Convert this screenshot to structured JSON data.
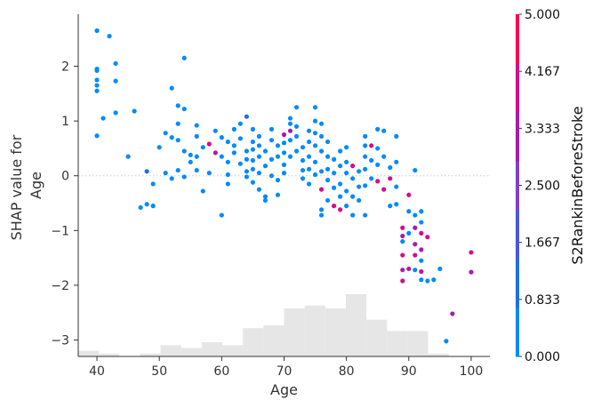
{
  "chart_data": {
    "type": "scatter",
    "title": "",
    "xlabel": "Age",
    "ylabel_lines": [
      "SHAP value for",
      "Age"
    ],
    "xlim": [
      37,
      103
    ],
    "ylim": [
      -3.3,
      2.95
    ],
    "x_ticks": [
      40,
      50,
      60,
      70,
      80,
      90,
      100
    ],
    "y_ticks": [
      2,
      1,
      0,
      -1,
      -2,
      -3
    ],
    "y_tick_labels": [
      "2",
      "1",
      "0",
      "−1",
      "−2",
      "−3"
    ],
    "zero_line": true,
    "grid": false,
    "colorbar": {
      "title": "S2RankinBeforeStroke",
      "range": [
        0,
        5
      ],
      "tick_labels": [
        "0.000",
        "0.833",
        "1.667",
        "2.500",
        "3.333",
        "4.167",
        "5.000"
      ],
      "colors": [
        "#008bfb",
        "#1e6fe0",
        "#4a58d8",
        "#7f3fd0",
        "#a81ab0",
        "#d40b8c",
        "#ff0052"
      ]
    },
    "histogram": {
      "bin_edges": [
        37,
        40.3,
        43.6,
        46.9,
        50.2,
        53.5,
        56.8,
        60.1,
        63.4,
        66.7,
        70,
        73.3,
        76.6,
        79.9,
        83.2,
        86.5,
        89.8,
        93.1,
        96.4,
        99.7,
        103
      ],
      "counts": [
        2,
        1,
        0,
        1,
        4,
        3,
        5,
        4,
        10,
        11,
        17,
        18,
        17,
        22,
        13,
        9,
        9,
        1,
        0,
        0
      ],
      "color": "#e6e6e6"
    },
    "points": [
      {
        "x": 40,
        "y": 2.65,
        "c": 0
      },
      {
        "x": 42,
        "y": 2.55,
        "c": 0
      },
      {
        "x": 40,
        "y": 1.95,
        "c": 0
      },
      {
        "x": 40,
        "y": 1.92,
        "c": 0
      },
      {
        "x": 43,
        "y": 2.05,
        "c": 0
      },
      {
        "x": 40,
        "y": 1.75,
        "c": 0
      },
      {
        "x": 43,
        "y": 1.73,
        "c": 0
      },
      {
        "x": 40,
        "y": 1.65,
        "c": 0
      },
      {
        "x": 40,
        "y": 1.55,
        "c": 0
      },
      {
        "x": 54,
        "y": 2.15,
        "c": 0
      },
      {
        "x": 41,
        "y": 1.05,
        "c": 0
      },
      {
        "x": 43,
        "y": 1.15,
        "c": 0
      },
      {
        "x": 40,
        "y": 0.73,
        "c": 0
      },
      {
        "x": 46,
        "y": 1.18,
        "c": 0
      },
      {
        "x": 45,
        "y": 0.35,
        "c": 0
      },
      {
        "x": 52,
        "y": 1.6,
        "c": 0
      },
      {
        "x": 53,
        "y": 1.28,
        "c": 0
      },
      {
        "x": 54,
        "y": 1.22,
        "c": 0
      },
      {
        "x": 51,
        "y": 0.78,
        "c": 0
      },
      {
        "x": 52,
        "y": 0.7,
        "c": 0
      },
      {
        "x": 50,
        "y": 0.52,
        "c": 0
      },
      {
        "x": 53,
        "y": 0.95,
        "c": 0
      },
      {
        "x": 53,
        "y": 0.65,
        "c": 0
      },
      {
        "x": 54,
        "y": 0.45,
        "c": 0
      },
      {
        "x": 53,
        "y": 0.1,
        "c": 0
      },
      {
        "x": 51,
        "y": 0.05,
        "c": 0
      },
      {
        "x": 48,
        "y": 0.08,
        "c": 1
      },
      {
        "x": 49,
        "y": -0.15,
        "c": 0
      },
      {
        "x": 47,
        "y": -0.58,
        "c": 0
      },
      {
        "x": 48,
        "y": -0.52,
        "c": 0
      },
      {
        "x": 49,
        "y": -0.55,
        "c": 0
      },
      {
        "x": 55,
        "y": 0.38,
        "c": 0
      },
      {
        "x": 55,
        "y": 0.25,
        "c": 0
      },
      {
        "x": 54,
        "y": -0.02,
        "c": 0
      },
      {
        "x": 52,
        "y": -0.05,
        "c": 0
      },
      {
        "x": 56,
        "y": 0.35,
        "c": 0
      },
      {
        "x": 56,
        "y": 0.1,
        "c": 0
      },
      {
        "x": 57,
        "y": -0.28,
        "c": 0
      },
      {
        "x": 56,
        "y": 0.92,
        "c": 0
      },
      {
        "x": 56,
        "y": 0.72,
        "c": 0
      },
      {
        "x": 57,
        "y": 0.52,
        "c": 0
      },
      {
        "x": 58,
        "y": 0.58,
        "c": 4
      },
      {
        "x": 59,
        "y": 0.42,
        "c": 3
      },
      {
        "x": 58,
        "y": 0.05,
        "c": 0
      },
      {
        "x": 60,
        "y": -0.72,
        "c": 0
      },
      {
        "x": 59,
        "y": 0.82,
        "c": 0
      },
      {
        "x": 60,
        "y": 0.7,
        "c": 0
      },
      {
        "x": 60,
        "y": 0.35,
        "c": 0
      },
      {
        "x": 61,
        "y": 0.25,
        "c": 0
      },
      {
        "x": 61,
        "y": 0.62,
        "c": 0
      },
      {
        "x": 61,
        "y": 0.02,
        "c": 0
      },
      {
        "x": 61,
        "y": -0.15,
        "c": 0
      },
      {
        "x": 62,
        "y": 0.55,
        "c": 0
      },
      {
        "x": 62,
        "y": 0.42,
        "c": 0
      },
      {
        "x": 62,
        "y": 0.85,
        "c": 0
      },
      {
        "x": 63,
        "y": 0.95,
        "c": 0
      },
      {
        "x": 63,
        "y": 0.68,
        "c": 0
      },
      {
        "x": 63,
        "y": 0.22,
        "c": 0
      },
      {
        "x": 64,
        "y": 1.08,
        "c": 1
      },
      {
        "x": 64,
        "y": 0.45,
        "c": 0
      },
      {
        "x": 64,
        "y": 0.3,
        "c": 0
      },
      {
        "x": 64,
        "y": 0.08,
        "c": 0
      },
      {
        "x": 64,
        "y": -0.02,
        "c": 0
      },
      {
        "x": 65,
        "y": 0.85,
        "c": 0
      },
      {
        "x": 65,
        "y": 0.62,
        "c": 0
      },
      {
        "x": 65,
        "y": 0.48,
        "c": 0
      },
      {
        "x": 65,
        "y": 0.28,
        "c": 0
      },
      {
        "x": 65,
        "y": 0.12,
        "c": 0
      },
      {
        "x": 65,
        "y": -0.12,
        "c": 0
      },
      {
        "x": 66,
        "y": 0.72,
        "c": 0
      },
      {
        "x": 66,
        "y": 0.55,
        "c": 0
      },
      {
        "x": 66,
        "y": 0.35,
        "c": 0
      },
      {
        "x": 66,
        "y": 0.05,
        "c": 0
      },
      {
        "x": 66,
        "y": -0.25,
        "c": 0
      },
      {
        "x": 67,
        "y": 0.45,
        "c": 0
      },
      {
        "x": 67,
        "y": 0.18,
        "c": 0
      },
      {
        "x": 67,
        "y": -0.38,
        "c": 0
      },
      {
        "x": 67,
        "y": -0.45,
        "c": 0
      },
      {
        "x": 68,
        "y": 0.85,
        "c": 0
      },
      {
        "x": 68,
        "y": 0.65,
        "c": 0
      },
      {
        "x": 68,
        "y": 0.3,
        "c": 0
      },
      {
        "x": 68,
        "y": 0.0,
        "c": 0
      },
      {
        "x": 69,
        "y": 0.55,
        "c": 0
      },
      {
        "x": 69,
        "y": 0.35,
        "c": 0
      },
      {
        "x": 69,
        "y": -0.08,
        "c": 0
      },
      {
        "x": 69,
        "y": -0.35,
        "c": 0
      },
      {
        "x": 70,
        "y": 0.75,
        "c": 3
      },
      {
        "x": 70,
        "y": 0.6,
        "c": 0
      },
      {
        "x": 70,
        "y": 0.42,
        "c": 0
      },
      {
        "x": 70,
        "y": 0.2,
        "c": 0
      },
      {
        "x": 70,
        "y": 0.05,
        "c": 0
      },
      {
        "x": 71,
        "y": 1.05,
        "c": 0
      },
      {
        "x": 71,
        "y": 0.95,
        "c": 0
      },
      {
        "x": 71,
        "y": 0.82,
        "c": 3
      },
      {
        "x": 71,
        "y": 0.65,
        "c": 0
      },
      {
        "x": 71,
        "y": 0.35,
        "c": 0
      },
      {
        "x": 72,
        "y": 1.25,
        "c": 0
      },
      {
        "x": 72,
        "y": 0.9,
        "c": 0
      },
      {
        "x": 72,
        "y": 0.72,
        "c": 0
      },
      {
        "x": 72,
        "y": 0.45,
        "c": 0
      },
      {
        "x": 73,
        "y": 0.52,
        "c": 0
      },
      {
        "x": 73,
        "y": 0.28,
        "c": 0
      },
      {
        "x": 73,
        "y": 0.1,
        "c": 0
      },
      {
        "x": 73,
        "y": -0.05,
        "c": 0
      },
      {
        "x": 74,
        "y": 0.82,
        "c": 0
      },
      {
        "x": 74,
        "y": 0.62,
        "c": 0
      },
      {
        "x": 74,
        "y": 0.35,
        "c": 0
      },
      {
        "x": 74,
        "y": 0.12,
        "c": 0
      },
      {
        "x": 74,
        "y": -0.15,
        "c": 0
      },
      {
        "x": 75,
        "y": 1.25,
        "c": 0
      },
      {
        "x": 75,
        "y": 1.0,
        "c": 0
      },
      {
        "x": 75,
        "y": 0.78,
        "c": 0
      },
      {
        "x": 75,
        "y": 0.55,
        "c": 0
      },
      {
        "x": 75,
        "y": 0.25,
        "c": 0
      },
      {
        "x": 75,
        "y": 0.02,
        "c": 0
      },
      {
        "x": 76,
        "y": 0.95,
        "c": 0
      },
      {
        "x": 76,
        "y": 0.72,
        "c": 0
      },
      {
        "x": 76,
        "y": 0.45,
        "c": 0
      },
      {
        "x": 76,
        "y": 0.08,
        "c": 0
      },
      {
        "x": 76,
        "y": -0.25,
        "c": 4
      },
      {
        "x": 76,
        "y": -0.62,
        "c": 0
      },
      {
        "x": 76,
        "y": -0.72,
        "c": 0
      },
      {
        "x": 77,
        "y": 0.62,
        "c": 0
      },
      {
        "x": 77,
        "y": 0.35,
        "c": 0
      },
      {
        "x": 77,
        "y": 0.12,
        "c": 0
      },
      {
        "x": 77,
        "y": -0.08,
        "c": 0
      },
      {
        "x": 77,
        "y": -0.45,
        "c": 0
      },
      {
        "x": 78,
        "y": 0.3,
        "c": 0
      },
      {
        "x": 78,
        "y": 0.05,
        "c": 0
      },
      {
        "x": 78,
        "y": -0.22,
        "c": 0
      },
      {
        "x": 78,
        "y": -0.55,
        "c": 4
      },
      {
        "x": 79,
        "y": 0.45,
        "c": 0
      },
      {
        "x": 79,
        "y": 0.18,
        "c": 0
      },
      {
        "x": 79,
        "y": -0.15,
        "c": 0
      },
      {
        "x": 79,
        "y": -0.38,
        "c": 0
      },
      {
        "x": 79,
        "y": -0.62,
        "c": 4
      },
      {
        "x": 80,
        "y": 0.52,
        "c": 0
      },
      {
        "x": 80,
        "y": 0.25,
        "c": 0
      },
      {
        "x": 80,
        "y": 0.05,
        "c": 0
      },
      {
        "x": 80,
        "y": -0.28,
        "c": 0
      },
      {
        "x": 80,
        "y": -0.55,
        "c": 0
      },
      {
        "x": 81,
        "y": 0.18,
        "c": 4
      },
      {
        "x": 81,
        "y": -0.05,
        "c": 0
      },
      {
        "x": 81,
        "y": -0.38,
        "c": 0
      },
      {
        "x": 81,
        "y": -0.72,
        "c": 0
      },
      {
        "x": 82,
        "y": 0.08,
        "c": 0
      },
      {
        "x": 82,
        "y": -0.2,
        "c": 0
      },
      {
        "x": 82,
        "y": -0.45,
        "c": 0
      },
      {
        "x": 83,
        "y": 0.72,
        "c": 0
      },
      {
        "x": 83,
        "y": 0.55,
        "c": 0
      },
      {
        "x": 83,
        "y": 0.35,
        "c": 0
      },
      {
        "x": 83,
        "y": 0.12,
        "c": 0
      },
      {
        "x": 83,
        "y": -0.18,
        "c": 0
      },
      {
        "x": 83,
        "y": -0.72,
        "c": 0
      },
      {
        "x": 84,
        "y": 0.55,
        "c": 4
      },
      {
        "x": 84,
        "y": 0.28,
        "c": 0
      },
      {
        "x": 84,
        "y": -0.05,
        "c": 0
      },
      {
        "x": 85,
        "y": 0.85,
        "c": 0
      },
      {
        "x": 85,
        "y": 0.5,
        "c": 0
      },
      {
        "x": 85,
        "y": 0.2,
        "c": 0
      },
      {
        "x": 85,
        "y": -0.1,
        "c": 4
      },
      {
        "x": 86,
        "y": 0.82,
        "c": 0
      },
      {
        "x": 86,
        "y": 0.35,
        "c": 0
      },
      {
        "x": 86,
        "y": -0.25,
        "c": 4
      },
      {
        "x": 87,
        "y": 0.15,
        "c": 0
      },
      {
        "x": 87,
        "y": -0.05,
        "c": 4
      },
      {
        "x": 87,
        "y": -0.55,
        "c": 0
      },
      {
        "x": 88,
        "y": 0.72,
        "c": 0
      },
      {
        "x": 88,
        "y": 0.25,
        "c": 0
      },
      {
        "x": 88,
        "y": -0.2,
        "c": 0
      },
      {
        "x": 88,
        "y": -0.52,
        "c": 0
      },
      {
        "x": 89,
        "y": -0.95,
        "c": 4
      },
      {
        "x": 89,
        "y": -1.1,
        "c": 3
      },
      {
        "x": 89,
        "y": -1.2,
        "c": 0
      },
      {
        "x": 89,
        "y": -1.45,
        "c": 4
      },
      {
        "x": 89,
        "y": -1.72,
        "c": 3
      },
      {
        "x": 89,
        "y": -1.92,
        "c": 4
      },
      {
        "x": 90,
        "y": -0.35,
        "c": 4
      },
      {
        "x": 90,
        "y": -0.65,
        "c": 0
      },
      {
        "x": 90,
        "y": -1.05,
        "c": 0
      },
      {
        "x": 90,
        "y": -1.7,
        "c": 3
      },
      {
        "x": 91,
        "y": 0.1,
        "c": 0
      },
      {
        "x": 91,
        "y": -0.72,
        "c": 0
      },
      {
        "x": 91,
        "y": -0.95,
        "c": 3
      },
      {
        "x": 91,
        "y": -1.25,
        "c": 3
      },
      {
        "x": 91,
        "y": -1.45,
        "c": 4
      },
      {
        "x": 91,
        "y": -1.72,
        "c": 0
      },
      {
        "x": 92,
        "y": -0.65,
        "c": 0
      },
      {
        "x": 92,
        "y": -0.85,
        "c": 0
      },
      {
        "x": 92,
        "y": -1.05,
        "c": 4
      },
      {
        "x": 92,
        "y": -1.35,
        "c": 3
      },
      {
        "x": 92,
        "y": -1.55,
        "c": 0
      },
      {
        "x": 92,
        "y": -1.75,
        "c": 4
      },
      {
        "x": 92,
        "y": -1.9,
        "c": 0
      },
      {
        "x": 93,
        "y": -1.12,
        "c": 4
      },
      {
        "x": 93,
        "y": -1.92,
        "c": 0
      },
      {
        "x": 94,
        "y": -1.9,
        "c": 0
      },
      {
        "x": 95,
        "y": -1.7,
        "c": 0
      },
      {
        "x": 96,
        "y": -3.02,
        "c": 0
      },
      {
        "x": 97,
        "y": -2.52,
        "c": 3
      },
      {
        "x": 100,
        "y": -1.4,
        "c": 4
      },
      {
        "x": 100,
        "y": -1.76,
        "c": 3
      }
    ]
  }
}
